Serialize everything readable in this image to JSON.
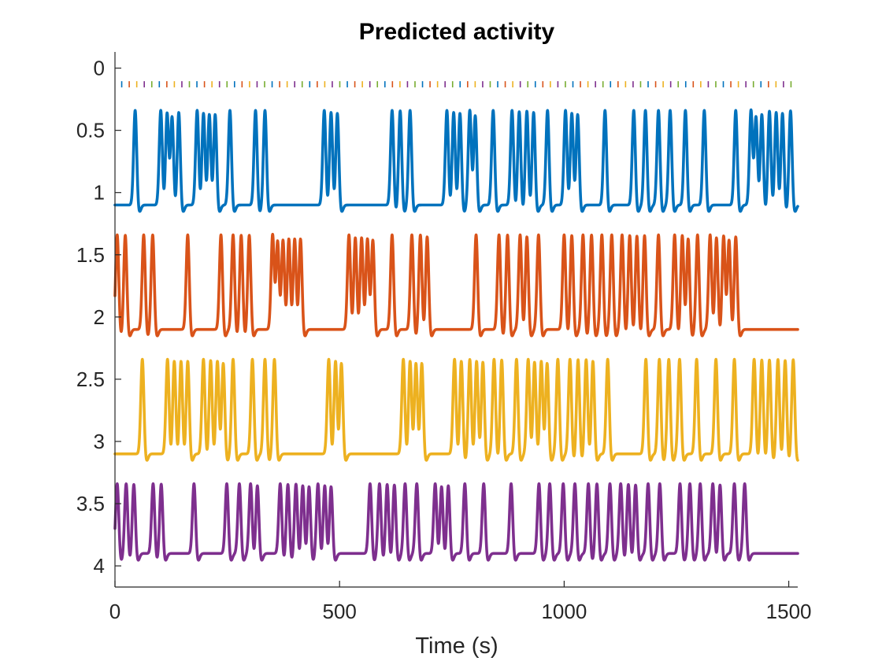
{
  "chart_data": {
    "type": "line",
    "title": "Predicted activity",
    "xlabel": "Time (s)",
    "ylabel": "",
    "xlim": [
      0,
      1520
    ],
    "ylim": [
      -0.13,
      4.17
    ],
    "y_reversed": true,
    "x_ticks": [
      0,
      500,
      1000,
      1500
    ],
    "x_tick_labels": [
      "0",
      "500",
      "1000",
      "1500"
    ],
    "y_ticks": [
      0,
      0.5,
      1,
      1.5,
      2,
      2.5,
      3,
      3.5,
      4
    ],
    "y_tick_labels": [
      "0",
      "0.5",
      "1",
      "1.5",
      "2",
      "2.5",
      "3",
      "3.5",
      "4"
    ],
    "grid": false,
    "legend": "none",
    "spike_width_s": 9,
    "undershoot_depth": 0.07,
    "series": [
      {
        "color": "#0072BD",
        "baseline": 1.1,
        "peak": 0.33,
        "end": 1520,
        "spike_times": [
          45,
          102,
          116,
          127,
          142,
          183,
          197,
          210,
          223,
          256,
          313,
          334,
          466,
          481,
          495,
          617,
          635,
          657,
          739,
          754,
          768,
          790,
          802,
          842,
          884,
          900,
          917,
          932,
          963,
          1003,
          1017,
          1030,
          1091,
          1155,
          1181,
          1210,
          1236,
          1270,
          1312,
          1382,
          1416,
          1427,
          1440,
          1457,
          1472,
          1486,
          1504
        ]
      },
      {
        "color": "#D95319",
        "baseline": 2.1,
        "peak": 1.33,
        "end": 1520,
        "spike_times": [
          5,
          23,
          64,
          84,
          162,
          236,
          263,
          281,
          299,
          351,
          362,
          374,
          387,
          400,
          413,
          521,
          535,
          549,
          562,
          574,
          617,
          661,
          680,
          695,
          804,
          855,
          874,
          902,
          917,
          943,
          1000,
          1017,
          1042,
          1061,
          1084,
          1106,
          1129,
          1146,
          1162,
          1179,
          1210,
          1246,
          1263,
          1276,
          1297,
          1325,
          1339,
          1355,
          1367,
          1382
        ]
      },
      {
        "color": "#EDB120",
        "baseline": 3.1,
        "peak": 2.33,
        "end": 1520,
        "spike_times": [
          61,
          117,
          132,
          147,
          162,
          197,
          213,
          228,
          241,
          263,
          306,
          334,
          355,
          476,
          491,
          504,
          642,
          657,
          670,
          683,
          756,
          771,
          790,
          805,
          819,
          844,
          861,
          894,
          920,
          934,
          949,
          962,
          986,
          1013,
          1031,
          1049,
          1064,
          1097,
          1182,
          1212,
          1233,
          1257,
          1295,
          1338,
          1379,
          1423,
          1440,
          1457,
          1476,
          1492,
          1510
        ]
      },
      {
        "color": "#7E2F8E",
        "baseline": 3.9,
        "peak": 3.33,
        "end": 1520,
        "spike_times": [
          5,
          25,
          42,
          85,
          103,
          176,
          249,
          277,
          302,
          317,
          368,
          385,
          403,
          418,
          432,
          452,
          467,
          481,
          568,
          589,
          606,
          622,
          646,
          672,
          713,
          727,
          742,
          779,
          821,
          882,
          944,
          968,
          998,
          1024,
          1054,
          1073,
          1102,
          1126,
          1143,
          1159,
          1187,
          1213,
          1258,
          1280,
          1303,
          1331,
          1347,
          1379,
          1402
        ]
      }
    ],
    "raster": {
      "y": 0.13,
      "tick_height": 0.05,
      "colors": [
        "#0072BD",
        "#D95319",
        "#EDB120",
        "#7E2F8E",
        "#77AC30"
      ],
      "count": 90
    }
  }
}
